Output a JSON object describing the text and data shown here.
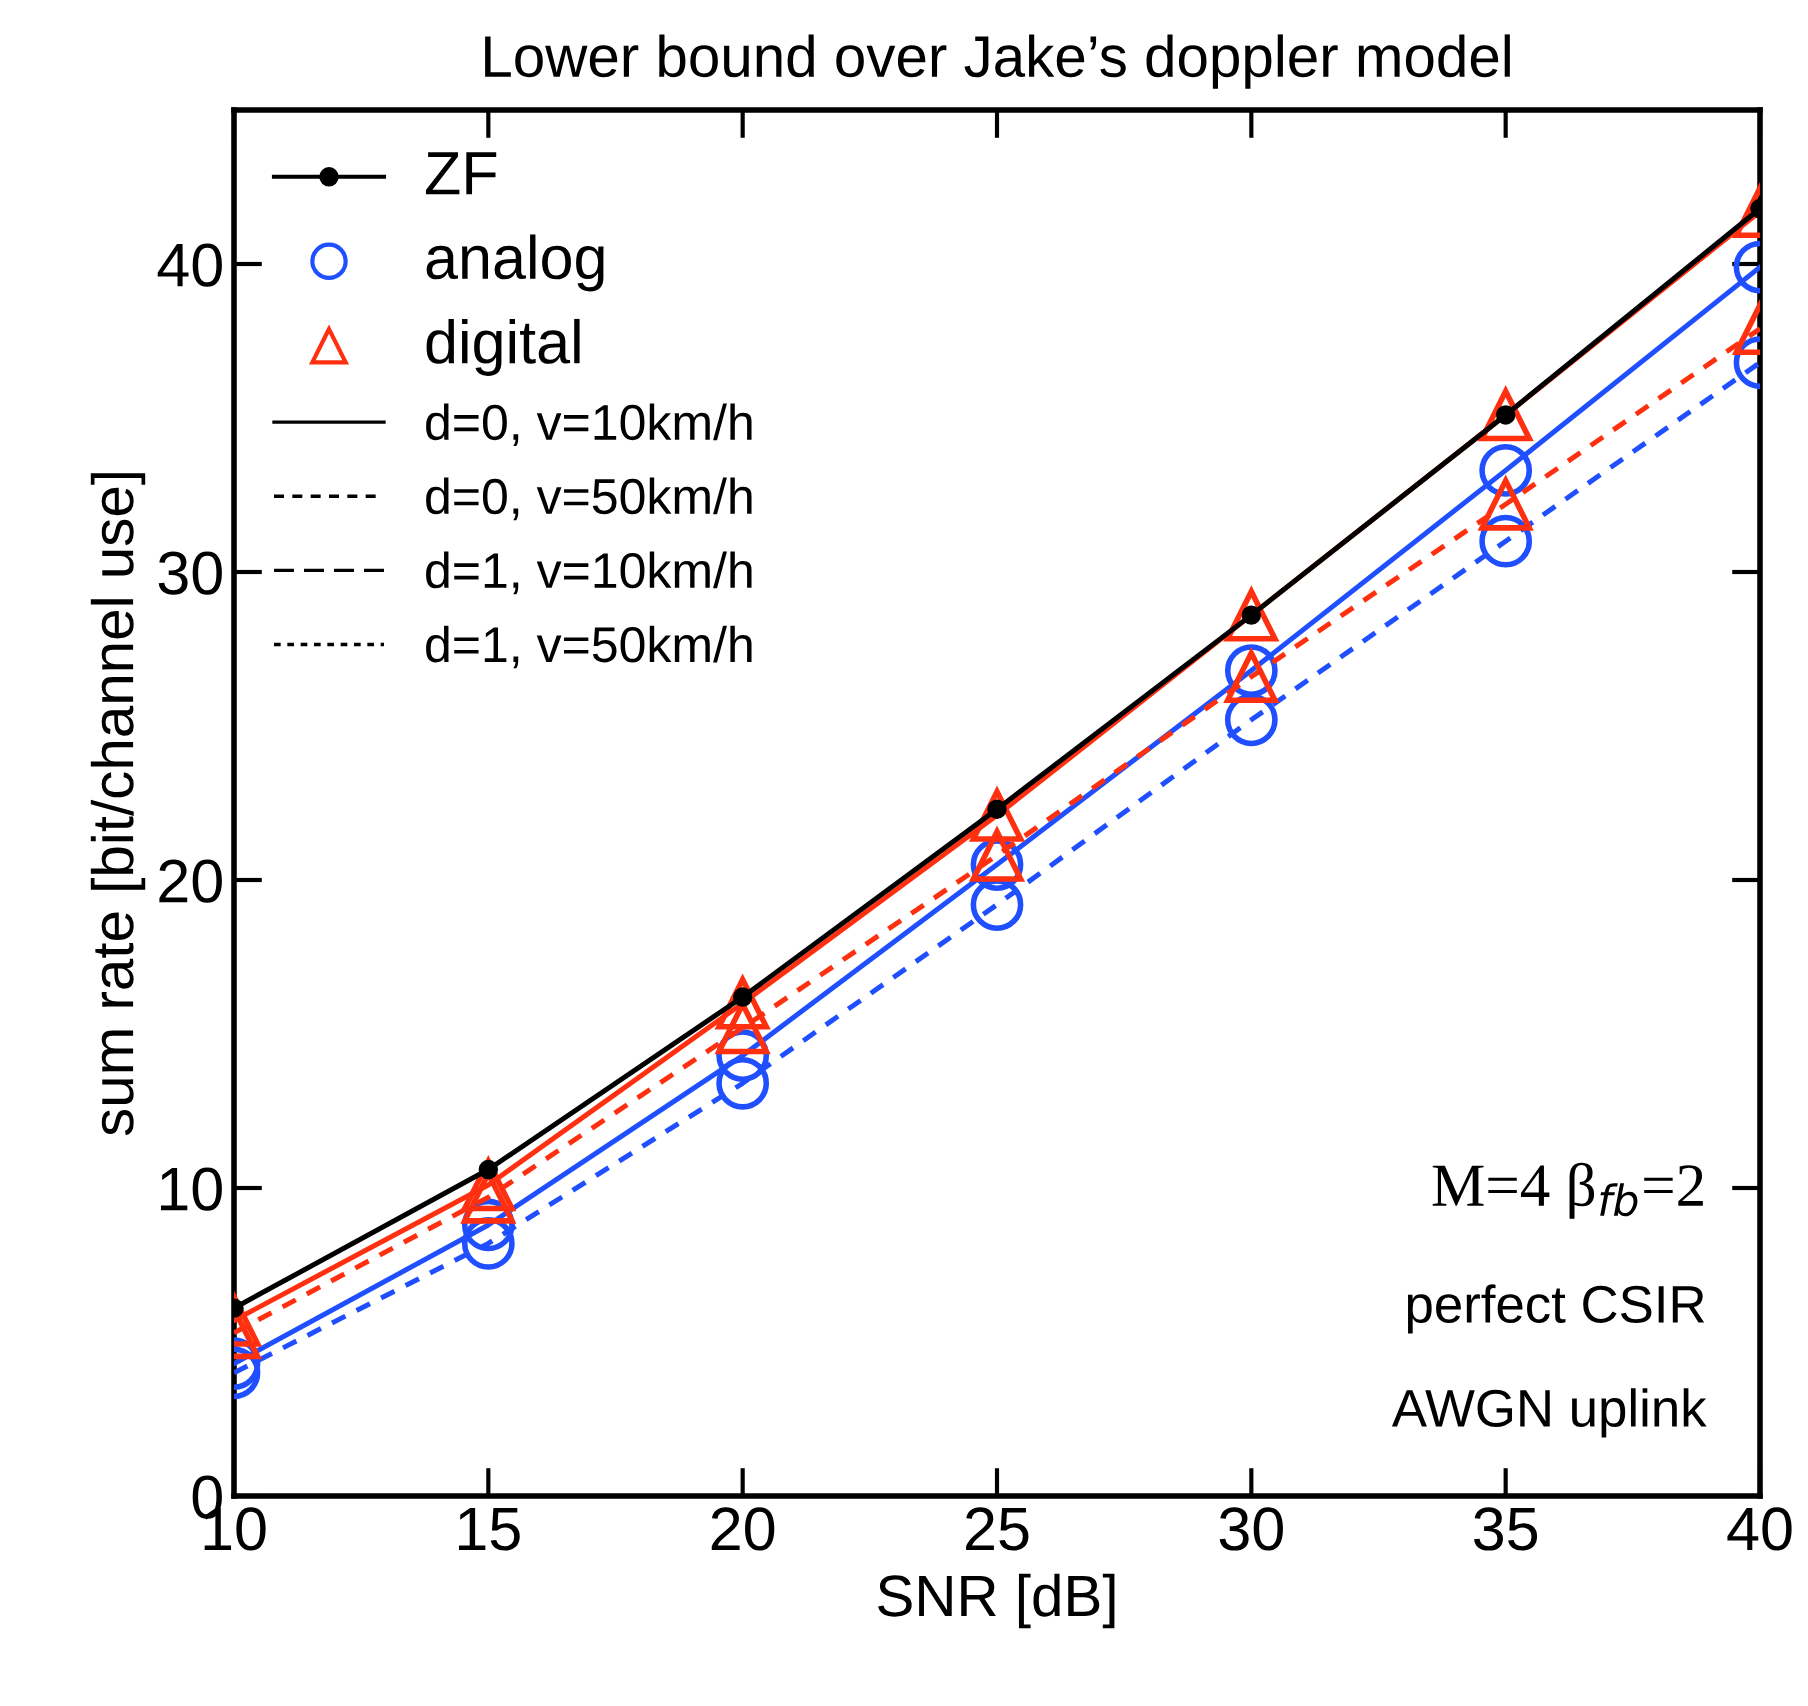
{
  "chart_data": {
    "type": "line",
    "title": "Lower bound over Jake’s doppler model",
    "xlabel": "SNR [dB]",
    "ylabel": "sum rate [bit/channel use]",
    "x": [
      10,
      15,
      20,
      25,
      30,
      35,
      40
    ],
    "series": [
      {
        "name": "ZF",
        "color": "#000000",
        "marker": "circle",
        "line_style": "solid",
        "values": [
          6.1,
          10.6,
          16.2,
          22.3,
          28.6,
          35.1,
          41.8
        ]
      },
      {
        "name": "analog",
        "color": "#1f4fff",
        "marker": "circle",
        "line_style": "solid",
        "values": [
          4.3,
          8.8,
          14.3,
          20.5,
          26.8,
          33.3,
          39.9
        ]
      },
      {
        "name": "digital",
        "color": "#ff3010",
        "marker": "triangle",
        "line_style": "solid",
        "values": [
          5.7,
          10.1,
          16.0,
          22.1,
          28.6,
          35.1,
          41.7
        ]
      },
      {
        "color": "#1f4fff",
        "marker": "circle",
        "line_style": "dashed",
        "values": [
          4.0,
          8.2,
          13.4,
          19.2,
          25.2,
          31.0,
          36.8
        ]
      },
      {
        "color": "#ff3010",
        "marker": "triangle",
        "line_style": "dashed",
        "values": [
          5.3,
          9.7,
          15.2,
          20.8,
          26.6,
          32.2,
          37.9
        ]
      }
    ],
    "annotations": [
      "d=0, v=10km/h",
      "d=0, v=50km/h",
      "d=1, v=10km/h",
      "d=1, v=50km/h",
      "M=4 β$_{fb}$=2",
      "perfect CSIR",
      "AWGN uplink"
    ],
    "xlim": [
      10,
      40
    ],
    "ylim": [
      0,
      45
    ],
    "xticks": [
      10,
      15,
      20,
      25,
      30,
      35,
      40
    ],
    "yticks": [
      0,
      10,
      20,
      30,
      40
    ],
    "grid": false,
    "legend": "top left"
  }
}
